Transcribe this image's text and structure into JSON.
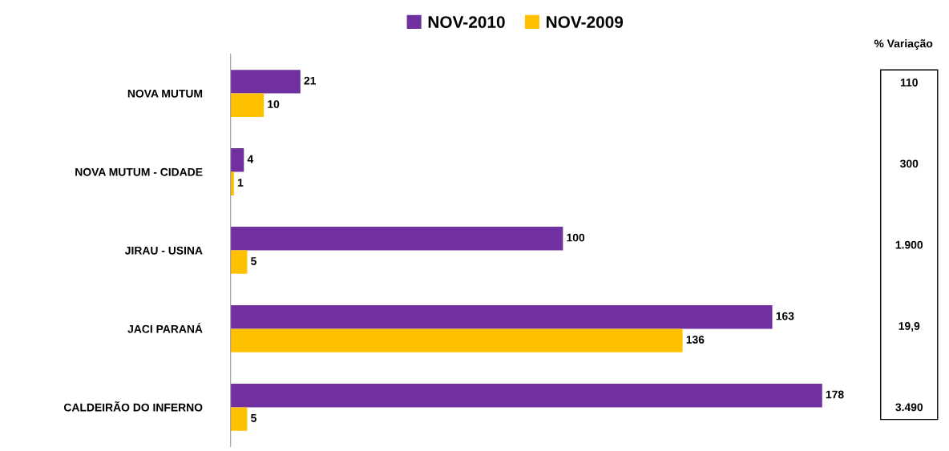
{
  "chart_data": {
    "type": "bar",
    "orientation": "horizontal",
    "categories": [
      "NOVA MUTUM",
      "NOVA MUTUM - CIDADE",
      "JIRAU - USINA",
      "JACI PARANÁ",
      "CALDEIRÃO DO INFERNO"
    ],
    "series": [
      {
        "name": "NOV-2010",
        "color": "#7030a0",
        "values": [
          21,
          4,
          100,
          163,
          178
        ]
      },
      {
        "name": "NOV-2009",
        "color": "#ffc000",
        "values": [
          10,
          1,
          5,
          136,
          5
        ]
      }
    ],
    "data_labels": true,
    "legend": "top",
    "grid": false,
    "annotations": [
      "% Variação",
      "110",
      "300",
      "1.900",
      "19,9",
      "3.490"
    ]
  }
}
